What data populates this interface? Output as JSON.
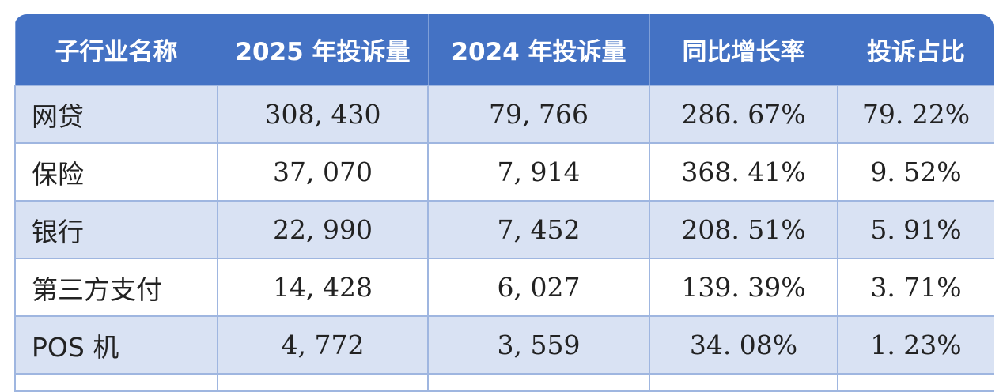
{
  "table": {
    "headers": [
      "子行业名称",
      "2025 年投诉量",
      "2024 年投诉量",
      "同比增长率",
      "投诉占比"
    ],
    "rows": [
      [
        "网贷",
        "308, 430",
        "79, 766",
        "286. 67%",
        "79. 22%"
      ],
      [
        "保险",
        "37, 070",
        "7, 914",
        "368. 41%",
        "9. 52%"
      ],
      [
        "银行",
        "22, 990",
        "7, 452",
        "208. 51%",
        "5. 91%"
      ],
      [
        "第三方支付",
        "14, 428",
        "6, 027",
        "139. 39%",
        "3. 71%"
      ],
      [
        "POS 机",
        "4, 772",
        "3, 559",
        "34. 08%",
        "1. 23%"
      ]
    ]
  },
  "colors": {
    "header": "#4472C4",
    "row_alt": "#D9E2F3",
    "border": "#9fb6e0"
  }
}
